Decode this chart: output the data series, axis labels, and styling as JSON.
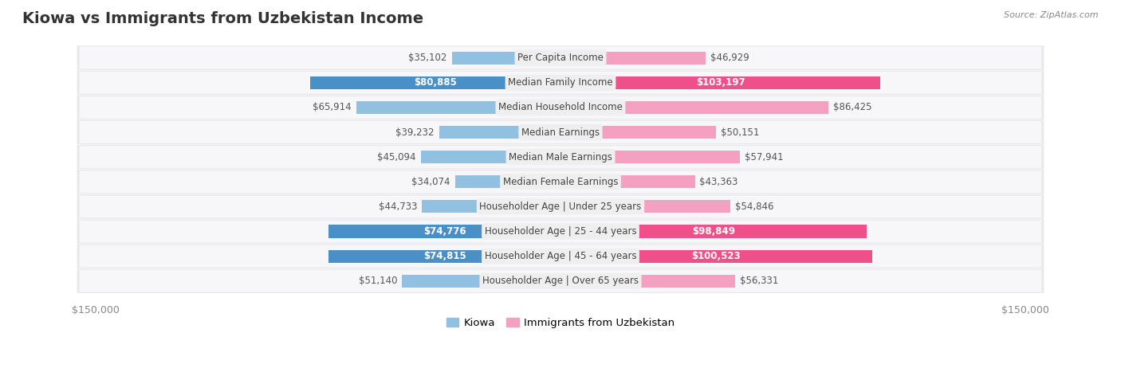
{
  "title": "Kiowa vs Immigrants from Uzbekistan Income",
  "source": "Source: ZipAtlas.com",
  "categories": [
    "Per Capita Income",
    "Median Family Income",
    "Median Household Income",
    "Median Earnings",
    "Median Male Earnings",
    "Median Female Earnings",
    "Householder Age | Under 25 years",
    "Householder Age | 25 - 44 years",
    "Householder Age | 45 - 64 years",
    "Householder Age | Over 65 years"
  ],
  "kiowa_values": [
    35102,
    80885,
    65914,
    39232,
    45094,
    34074,
    44733,
    74776,
    74815,
    51140
  ],
  "uzbekistan_values": [
    46929,
    103197,
    86425,
    50151,
    57941,
    43363,
    54846,
    98849,
    100523,
    56331
  ],
  "kiowa_color": "#92c0e0",
  "uzbekistan_color": "#f4a0c0",
  "kiowa_color_dark": "#4a90c8",
  "uzbekistan_color_dark": "#f0508a",
  "row_bg_color": "#e8e8ec",
  "row_inner_color": "#f7f7f9",
  "max_value": 150000,
  "title_fontsize": 14,
  "label_fontsize": 8.5,
  "value_fontsize": 8.5,
  "legend_fontsize": 9.5,
  "axis_label_fontsize": 9,
  "highlight_rows": [
    1,
    7,
    8
  ],
  "background_color": "#ffffff"
}
